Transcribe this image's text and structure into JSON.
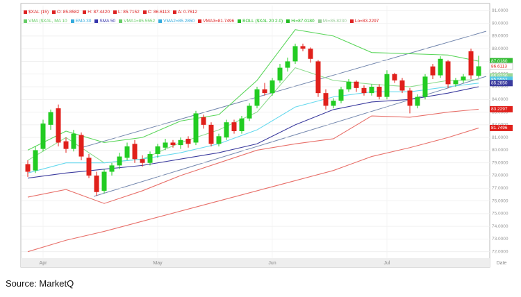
{
  "chart_data": {
    "type": "candlestick",
    "legend_rows": [
      [
        {
          "text": "$XAL (15)",
          "color": "#d22"
        },
        {
          "text": "O: 85.8582",
          "color": "#d22"
        },
        {
          "text": "H: 87.4420",
          "color": "#d22"
        },
        {
          "text": "L: 85.7152",
          "color": "#d22"
        },
        {
          "text": "C: 86.6113",
          "color": "#d22"
        },
        {
          "text": "Δ: 0.7612",
          "color": "#d22"
        }
      ],
      [
        {
          "text": "VMA ($XAL, MA 10",
          "color": "#6c6"
        },
        {
          "text": "EMA 30",
          "color": "#3ad"
        },
        {
          "text": "SMA 50",
          "color": "#33a"
        },
        {
          "text": "VMA1=85.5552",
          "color": "#6c6"
        },
        {
          "text": "VMA2=85.2850",
          "color": "#3ad"
        },
        {
          "text": "VMA3=81.7496",
          "color": "#d22"
        },
        {
          "text": "BOLL ($XAL 20 2.0)",
          "color": "#2b2"
        },
        {
          "text": "Hi=87.0180",
          "color": "#2b2"
        },
        {
          "text": "Mi=85.8230",
          "color": "#9c9"
        },
        {
          "text": "Lo=83.2297",
          "color": "#d22"
        }
      ]
    ],
    "categories": [
      null,
      null,
      "Apr",
      null,
      null,
      null,
      null,
      null,
      null,
      null,
      null,
      null,
      null,
      null,
      null,
      null,
      null,
      "May",
      null,
      null,
      null,
      null,
      null,
      null,
      null,
      null,
      null,
      null,
      null,
      null,
      null,
      null,
      "Jun",
      null,
      null,
      null,
      null,
      null,
      null,
      null,
      null,
      null,
      null,
      null,
      null,
      null,
      null,
      "Jul",
      null,
      null,
      null,
      null,
      null,
      null,
      null,
      null,
      null,
      null,
      null,
      null
    ],
    "x_label": "Date",
    "open": [
      78.9,
      78.4,
      80.1,
      82.0,
      83.3,
      80.7,
      80.1,
      81.2,
      79.4,
      78.0,
      76.8,
      78.3,
      78.8,
      79.4,
      80.5,
      79.3,
      79.0,
      79.7,
      80.2,
      80.6,
      80.4,
      80.9,
      80.6,
      82.6,
      82.0,
      80.5,
      81.0,
      82.2,
      81.5,
      82.5,
      83.5,
      84.8,
      84.5,
      85.5,
      86.5,
      87.0,
      88.2,
      88.0,
      87.0,
      84.5,
      83.5,
      83.9,
      84.8,
      85.4,
      84.9,
      84.5,
      85.0,
      84.2,
      86.0,
      85.5,
      84.7,
      83.5,
      84.2,
      86.6,
      85.9,
      87.0,
      85.2,
      85.5,
      87.8,
      85.8582
    ],
    "high": [
      79.2,
      80.3,
      82.4,
      83.2,
      83.6,
      81.0,
      81.6,
      81.4,
      79.7,
      78.3,
      78.5,
      79.0,
      79.8,
      80.6,
      80.8,
      79.6,
      79.9,
      80.5,
      80.9,
      80.8,
      81.0,
      81.1,
      83.1,
      82.8,
      82.2,
      81.3,
      82.4,
      82.4,
      82.7,
      83.7,
      85.0,
      85.3,
      85.7,
      86.8,
      87.3,
      88.4,
      88.4,
      88.1,
      87.1,
      84.8,
      84.1,
      85.0,
      85.6,
      85.5,
      85.1,
      85.2,
      85.2,
      86.3,
      86.1,
      85.7,
      84.9,
      84.4,
      86.0,
      86.8,
      87.4,
      87.1,
      85.7,
      86.0,
      88.0,
      87.442
    ],
    "low": [
      77.9,
      78.2,
      79.9,
      81.6,
      80.3,
      79.8,
      79.9,
      79.2,
      77.8,
      76.4,
      76.6,
      78.0,
      78.5,
      79.2,
      79.0,
      78.7,
      78.8,
      79.4,
      80.0,
      80.2,
      80.1,
      80.2,
      80.4,
      81.7,
      80.3,
      80.3,
      80.8,
      81.3,
      81.3,
      82.3,
      83.3,
      84.3,
      84.3,
      85.3,
      86.2,
      86.8,
      87.8,
      86.9,
      84.2,
      83.2,
      83.3,
      83.7,
      84.6,
      84.6,
      84.3,
      84.3,
      84.0,
      84.0,
      85.3,
      84.5,
      82.9,
      83.3,
      84.0,
      85.6,
      85.7,
      84.9,
      85.0,
      85.3,
      85.6,
      85.7152
    ],
    "close": [
      78.3,
      80.0,
      82.1,
      83.0,
      80.6,
      80.1,
      81.3,
      79.5,
      78.0,
      76.7,
      78.3,
      78.8,
      79.5,
      80.3,
      79.3,
      79.0,
      79.7,
      80.3,
      80.6,
      80.4,
      80.8,
      80.5,
      82.9,
      82.0,
      80.5,
      81.1,
      82.2,
      81.5,
      82.5,
      83.5,
      84.8,
      84.5,
      85.5,
      86.5,
      87.0,
      88.2,
      88.0,
      87.2,
      84.5,
      83.5,
      83.9,
      84.8,
      85.4,
      84.9,
      84.5,
      85.0,
      84.2,
      86.0,
      85.5,
      84.7,
      83.5,
      84.2,
      85.8,
      85.9,
      87.2,
      85.2,
      85.5,
      85.8,
      85.9,
      86.6113
    ],
    "up_color": "#22cc22",
    "down_color": "#e0201b",
    "overlays": [
      {
        "name": "BOLL Hi",
        "color": "#5cd65c",
        "x": [
          0,
          5,
          10,
          15,
          20,
          25,
          30,
          35,
          40,
          45,
          50,
          55,
          59
        ],
        "values": [
          80.0,
          81.5,
          80.6,
          81.0,
          82.3,
          82.8,
          85.5,
          89.5,
          89.0,
          87.7,
          87.6,
          87.5,
          87.018
        ]
      },
      {
        "name": "BOLL Lo",
        "color": "#e8706a",
        "x": [
          0,
          5,
          10,
          15,
          20,
          25,
          30,
          35,
          40,
          45,
          50,
          55,
          59
        ],
        "values": [
          76.3,
          76.9,
          75.8,
          76.8,
          78.0,
          79.0,
          80.0,
          80.5,
          80.9,
          82.7,
          82.6,
          83.0,
          83.2297
        ]
      },
      {
        "name": "VMA3",
        "color": "#e8706a",
        "x": [
          0,
          5,
          10,
          15,
          20,
          25,
          30,
          35,
          40,
          45,
          50,
          55,
          59
        ],
        "values": [
          72.0,
          72.9,
          73.6,
          74.4,
          75.2,
          76.0,
          76.8,
          77.6,
          78.4,
          79.5,
          80.2,
          81.0,
          81.7496
        ]
      },
      {
        "name": "MA 10",
        "color": "#8fdc8f",
        "x": [
          0,
          5,
          10,
          15,
          20,
          25,
          30,
          35,
          40,
          45,
          50,
          55,
          59
        ],
        "values": [
          79.2,
          81.0,
          79.0,
          79.3,
          80.6,
          81.6,
          83.0,
          86.5,
          85.5,
          85.2,
          85.0,
          85.5,
          85.5552
        ]
      },
      {
        "name": "EMA 30",
        "color": "#66d9ee",
        "x": [
          0,
          5,
          10,
          15,
          20,
          25,
          30,
          35,
          40,
          45,
          50,
          55,
          59
        ],
        "values": [
          78.2,
          79.0,
          79.0,
          79.3,
          79.8,
          80.5,
          81.6,
          83.4,
          84.2,
          84.6,
          84.6,
          85.0,
          85.285
        ]
      },
      {
        "name": "SMA 50",
        "color": "#3b3b9e",
        "x": [
          0,
          5,
          10,
          15,
          20,
          25,
          30,
          35,
          40,
          45,
          50,
          55,
          59
        ],
        "values": [
          77.8,
          78.2,
          78.5,
          78.8,
          79.3,
          79.8,
          80.5,
          82.0,
          83.2,
          83.8,
          84.0,
          84.5,
          85.0
        ]
      }
    ],
    "price_tags": [
      {
        "value": 87.018,
        "label": "87.0180",
        "color": "#33bb33"
      },
      {
        "value": 86.6113,
        "label": "86.6113",
        "color": "#e0201b"
      },
      {
        "value": 85.823,
        "label": "85.8230",
        "color": "#9ad89a"
      },
      {
        "value": 85.5552,
        "label": "85.5552",
        "color": "#55c8e6"
      },
      {
        "value": 85.285,
        "label": "85.2850",
        "color": "#3b3b9e"
      },
      {
        "value": 83.2297,
        "label": "83.2297",
        "color": "#e0201b"
      },
      {
        "value": 81.7496,
        "label": "81.7496",
        "color": "#e0201b"
      }
    ],
    "ylim": [
      71.6,
      91.4
    ],
    "yticks": [
      {
        "value": 72,
        "label": "72.0000"
      },
      {
        "value": 73,
        "label": "73.0000"
      },
      {
        "value": 74,
        "label": "74.0000"
      },
      {
        "value": 75,
        "label": "75.0000"
      },
      {
        "value": 76,
        "label": "76.0000"
      },
      {
        "value": 77,
        "label": "77.0000"
      },
      {
        "value": 78,
        "label": "78.0000"
      },
      {
        "value": 79,
        "label": "79.0000"
      },
      {
        "value": 80,
        "label": "80.0000"
      },
      {
        "value": 81,
        "label": "81.0000"
      },
      {
        "value": 82,
        "label": "82.0000"
      },
      {
        "value": 83,
        "label": "83.0000"
      },
      {
        "value": 84,
        "label": "84.0000"
      },
      {
        "value": 85,
        "label": "85.0000"
      },
      {
        "value": 86,
        "label": "86.0000"
      },
      {
        "value": 87,
        "label": "87.0000"
      },
      {
        "value": 88,
        "label": "88.0000"
      },
      {
        "value": 89,
        "label": "89.0000"
      },
      {
        "value": 90,
        "label": "90.0000"
      },
      {
        "value": 91,
        "label": "91.0000"
      }
    ],
    "grid": true
  },
  "source": "Source:  MarketQ"
}
